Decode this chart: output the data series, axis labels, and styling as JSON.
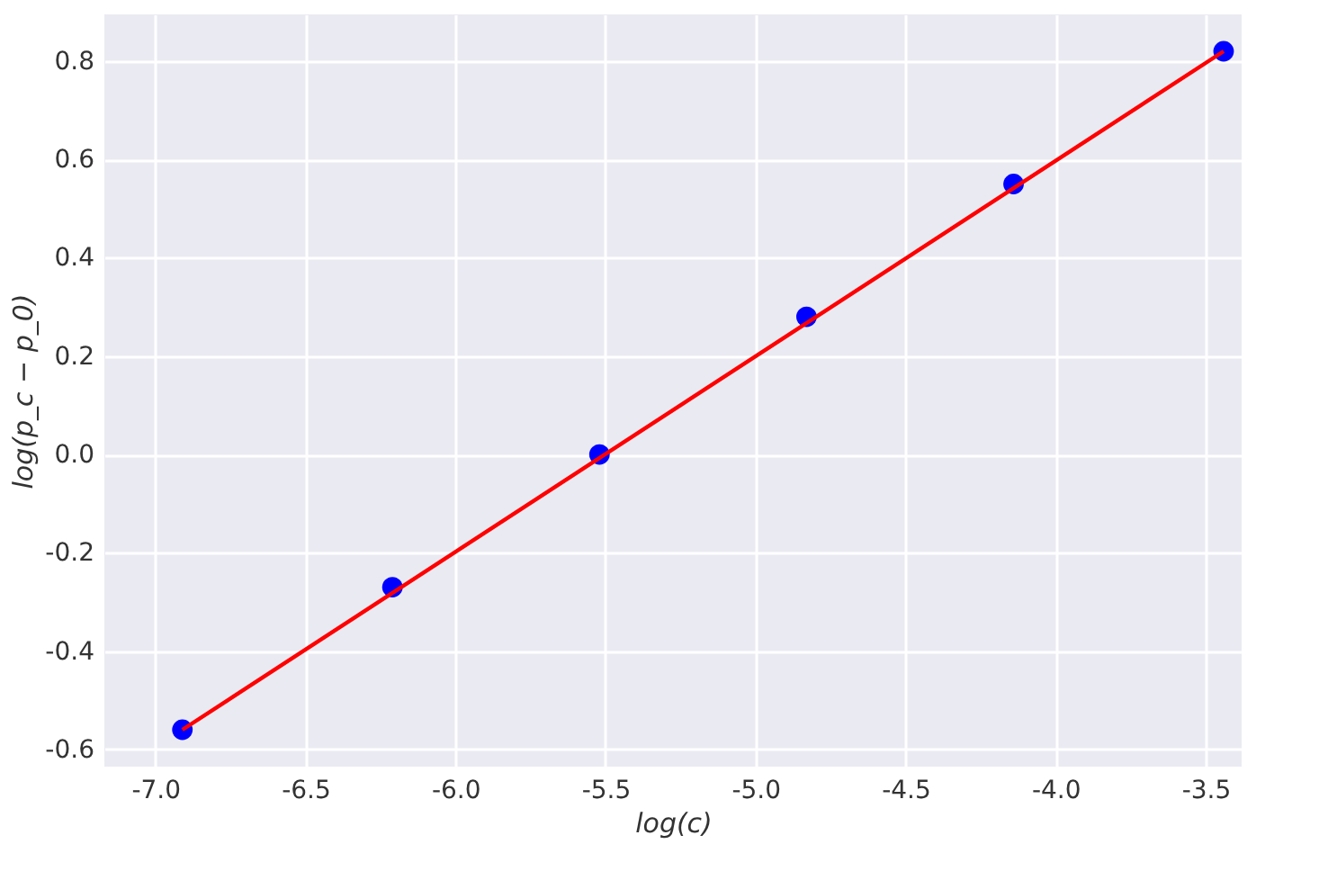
{
  "chart_data": {
    "type": "scatter",
    "xlabel": "log(c)",
    "ylabel": "log(p_c − p_0)",
    "x": [
      -6.91,
      -6.21,
      -5.52,
      -4.83,
      -4.14,
      -3.44
    ],
    "series": [
      {
        "color": "#0000ff",
        "values": [
          -0.56,
          -0.27,
          0.0,
          0.28,
          0.55,
          0.82
        ]
      },
      {
        "type": "line",
        "color": "#ff0000",
        "marker": "none",
        "line_style": "solid",
        "x": [
          -6.91,
          -3.44
        ],
        "values": [
          -0.56,
          0.82
        ]
      }
    ],
    "xlim": [
      -7.17,
      -3.38
    ],
    "ylim": [
      -0.635,
      0.895
    ],
    "xticks": [
      {
        "value": -7.0,
        "label": "-7.0"
      },
      {
        "value": -6.5,
        "label": "-6.5"
      },
      {
        "value": -6.0,
        "label": "-6.0"
      },
      {
        "value": -5.5,
        "label": "-5.5"
      },
      {
        "value": -5.0,
        "label": "-5.0"
      },
      {
        "value": -4.5,
        "label": "-4.5"
      },
      {
        "value": -4.0,
        "label": "-4.0"
      },
      {
        "value": -3.5,
        "label": "-3.5"
      }
    ],
    "yticks": [
      {
        "value": -0.6,
        "label": "-0.6"
      },
      {
        "value": -0.4,
        "label": "-0.4"
      },
      {
        "value": -0.2,
        "label": "-0.2"
      },
      {
        "value": 0.0,
        "label": "0.0"
      },
      {
        "value": 0.2,
        "label": "0.2"
      },
      {
        "value": 0.4,
        "label": "0.4"
      },
      {
        "value": 0.6,
        "label": "0.6"
      },
      {
        "value": 0.8,
        "label": "0.8"
      }
    ],
    "grid": true,
    "marker": "circle",
    "legend": false
  }
}
